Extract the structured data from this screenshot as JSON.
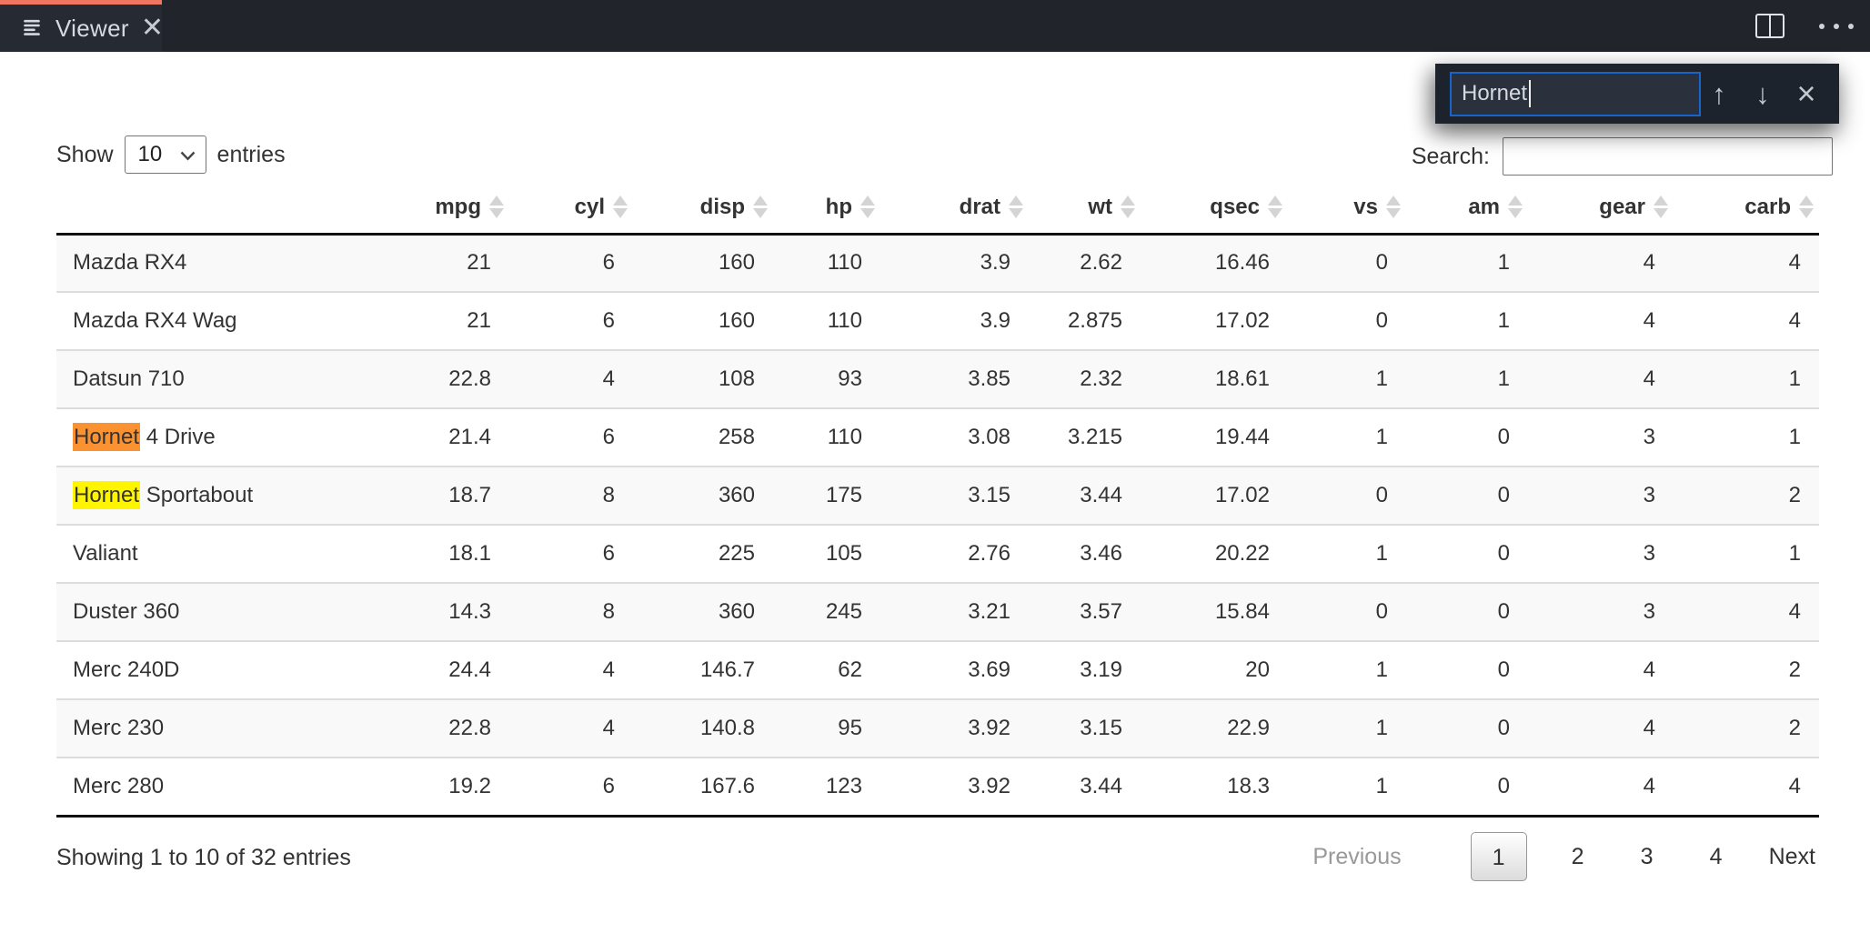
{
  "toolbar": {
    "tab_label": "Viewer",
    "accent_color": "#ee7662"
  },
  "find_bar": {
    "query": "Hornet",
    "input_border_color": "#1765cb",
    "prev_icon": "↑",
    "next_icon": "↓",
    "close_icon": "×"
  },
  "controls": {
    "show_label": "Show",
    "page_size": "10",
    "entries_label": "entries",
    "search_label": "Search:",
    "search_value": ""
  },
  "table": {
    "columns": [
      "",
      "mpg",
      "cyl",
      "disp",
      "hp",
      "drat",
      "wt",
      "qsec",
      "vs",
      "am",
      "gear",
      "carb"
    ],
    "highlight_colors": {
      "current": "#fa9232",
      "match": "#fff500"
    },
    "rows": [
      {
        "name_parts": [
          {
            "text": "Mazda RX4",
            "highlight": null
          }
        ],
        "values": [
          "21",
          "6",
          "160",
          "110",
          "3.9",
          "2.62",
          "16.46",
          "0",
          "1",
          "4",
          "4"
        ]
      },
      {
        "name_parts": [
          {
            "text": "Mazda RX4 Wag",
            "highlight": null
          }
        ],
        "values": [
          "21",
          "6",
          "160",
          "110",
          "3.9",
          "2.875",
          "17.02",
          "0",
          "1",
          "4",
          "4"
        ]
      },
      {
        "name_parts": [
          {
            "text": "Datsun 710",
            "highlight": null
          }
        ],
        "values": [
          "22.8",
          "4",
          "108",
          "93",
          "3.85",
          "2.32",
          "18.61",
          "1",
          "1",
          "4",
          "1"
        ]
      },
      {
        "name_parts": [
          {
            "text": "Hornet",
            "highlight": "current"
          },
          {
            "text": " 4 Drive",
            "highlight": null
          }
        ],
        "values": [
          "21.4",
          "6",
          "258",
          "110",
          "3.08",
          "3.215",
          "19.44",
          "1",
          "0",
          "3",
          "1"
        ]
      },
      {
        "name_parts": [
          {
            "text": "Hornet",
            "highlight": "match"
          },
          {
            "text": " Sportabout",
            "highlight": null
          }
        ],
        "values": [
          "18.7",
          "8",
          "360",
          "175",
          "3.15",
          "3.44",
          "17.02",
          "0",
          "0",
          "3",
          "2"
        ]
      },
      {
        "name_parts": [
          {
            "text": "Valiant",
            "highlight": null
          }
        ],
        "values": [
          "18.1",
          "6",
          "225",
          "105",
          "2.76",
          "3.46",
          "20.22",
          "1",
          "0",
          "3",
          "1"
        ]
      },
      {
        "name_parts": [
          {
            "text": "Duster 360",
            "highlight": null
          }
        ],
        "values": [
          "14.3",
          "8",
          "360",
          "245",
          "3.21",
          "3.57",
          "15.84",
          "0",
          "0",
          "3",
          "4"
        ]
      },
      {
        "name_parts": [
          {
            "text": "Merc 240D",
            "highlight": null
          }
        ],
        "values": [
          "24.4",
          "4",
          "146.7",
          "62",
          "3.69",
          "3.19",
          "20",
          "1",
          "0",
          "4",
          "2"
        ]
      },
      {
        "name_parts": [
          {
            "text": "Merc 230",
            "highlight": null
          }
        ],
        "values": [
          "22.8",
          "4",
          "140.8",
          "95",
          "3.92",
          "3.15",
          "22.9",
          "1",
          "0",
          "4",
          "2"
        ]
      },
      {
        "name_parts": [
          {
            "text": "Merc 280",
            "highlight": null
          }
        ],
        "values": [
          "19.2",
          "6",
          "167.6",
          "123",
          "3.92",
          "3.44",
          "18.3",
          "1",
          "0",
          "4",
          "4"
        ]
      }
    ]
  },
  "footer": {
    "info": "Showing 1 to 10 of 32 entries",
    "pagination": {
      "previous_label": "Previous",
      "pages": [
        "1",
        "2",
        "3",
        "4"
      ],
      "current_page": "1",
      "next_label": "Next"
    }
  }
}
